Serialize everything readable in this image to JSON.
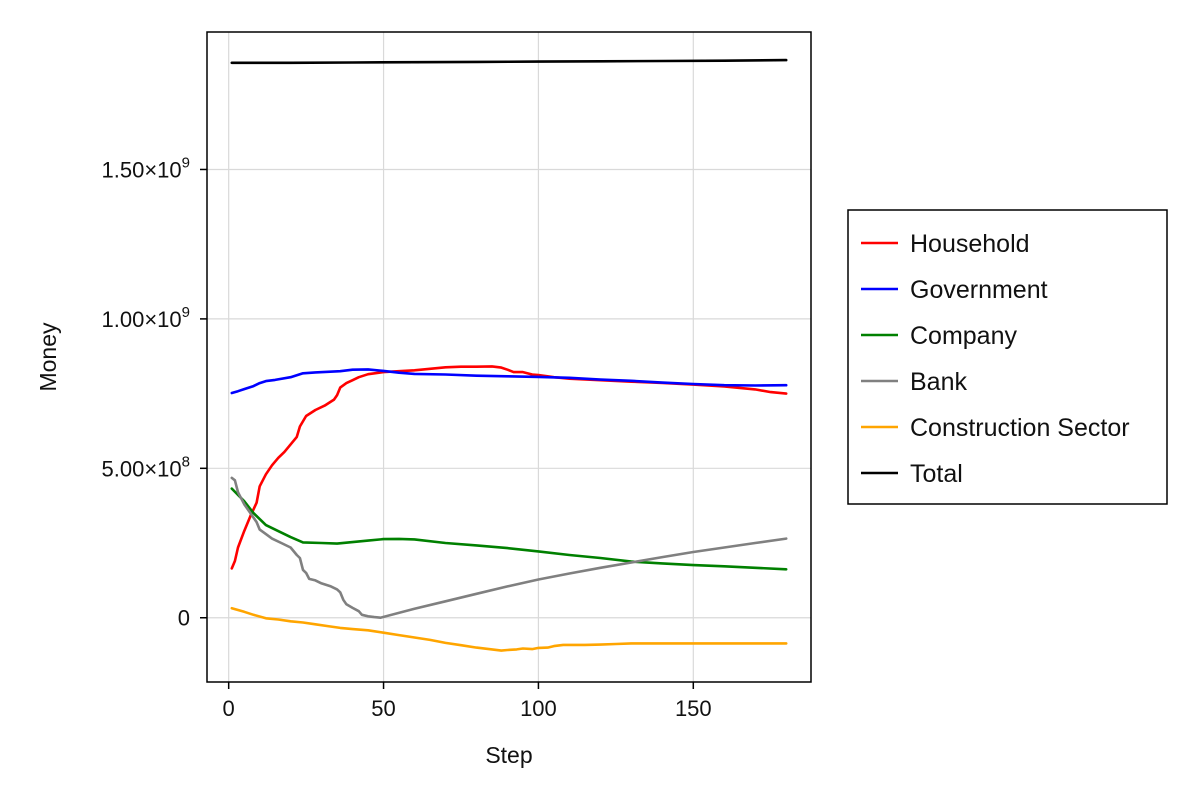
{
  "chart_data": {
    "type": "line",
    "xlabel": "Step",
    "ylabel": "Money",
    "xlim": [
      -7,
      188
    ],
    "ylim": [
      -215000000,
      1960000000
    ],
    "x_ticks": [
      {
        "value": 0,
        "label": "0"
      },
      {
        "value": 50,
        "label": "50"
      },
      {
        "value": 100,
        "label": "100"
      },
      {
        "value": 150,
        "label": "150"
      }
    ],
    "y_ticks": [
      {
        "value": 0,
        "mantissa": "0",
        "exponent": ""
      },
      {
        "value": 500000000,
        "mantissa": "5.00×10",
        "exponent": "8"
      },
      {
        "value": 1000000000,
        "mantissa": "1.00×10",
        "exponent": "9"
      },
      {
        "value": 1500000000,
        "mantissa": "1.50×10",
        "exponent": "9"
      }
    ],
    "grid": true,
    "legend_position": "right",
    "series": [
      {
        "name": "Household",
        "color": "#ff0000",
        "points": [
          [
            1,
            165000000
          ],
          [
            2,
            190000000
          ],
          [
            3,
            235000000
          ],
          [
            5,
            290000000
          ],
          [
            7,
            340000000
          ],
          [
            9,
            385000000
          ],
          [
            10,
            440000000
          ],
          [
            12,
            480000000
          ],
          [
            14,
            510000000
          ],
          [
            16,
            535000000
          ],
          [
            18,
            555000000
          ],
          [
            20,
            580000000
          ],
          [
            22,
            605000000
          ],
          [
            23,
            640000000
          ],
          [
            25,
            675000000
          ],
          [
            28,
            695000000
          ],
          [
            31,
            710000000
          ],
          [
            34,
            730000000
          ],
          [
            35,
            745000000
          ],
          [
            36,
            770000000
          ],
          [
            38,
            785000000
          ],
          [
            40,
            795000000
          ],
          [
            42,
            805000000
          ],
          [
            45,
            815000000
          ],
          [
            50,
            822000000
          ],
          [
            55,
            825000000
          ],
          [
            60,
            828000000
          ],
          [
            65,
            833000000
          ],
          [
            70,
            838000000
          ],
          [
            75,
            840000000
          ],
          [
            80,
            840000000
          ],
          [
            85,
            841000000
          ],
          [
            88,
            837000000
          ],
          [
            90,
            830000000
          ],
          [
            92,
            822000000
          ],
          [
            95,
            822000000
          ],
          [
            98,
            814000000
          ],
          [
            100,
            812000000
          ],
          [
            105,
            805000000
          ],
          [
            110,
            800000000
          ],
          [
            120,
            795000000
          ],
          [
            130,
            790000000
          ],
          [
            140,
            786000000
          ],
          [
            150,
            780000000
          ],
          [
            160,
            774000000
          ],
          [
            170,
            764000000
          ],
          [
            175,
            755000000
          ],
          [
            180,
            750000000
          ]
        ]
      },
      {
        "name": "Government",
        "color": "#0000ff",
        "points": [
          [
            1,
            752000000
          ],
          [
            3,
            758000000
          ],
          [
            5,
            765000000
          ],
          [
            8,
            775000000
          ],
          [
            10,
            785000000
          ],
          [
            12,
            792000000
          ],
          [
            15,
            796000000
          ],
          [
            20,
            805000000
          ],
          [
            24,
            818000000
          ],
          [
            28,
            821000000
          ],
          [
            32,
            823000000
          ],
          [
            36,
            825000000
          ],
          [
            40,
            830000000
          ],
          [
            45,
            831000000
          ],
          [
            50,
            826000000
          ],
          [
            55,
            820000000
          ],
          [
            60,
            816000000
          ],
          [
            70,
            814000000
          ],
          [
            80,
            810000000
          ],
          [
            90,
            808000000
          ],
          [
            100,
            806000000
          ],
          [
            110,
            803000000
          ],
          [
            120,
            797000000
          ],
          [
            130,
            793000000
          ],
          [
            140,
            787000000
          ],
          [
            150,
            782000000
          ],
          [
            160,
            778000000
          ],
          [
            170,
            777000000
          ],
          [
            180,
            778000000
          ]
        ]
      },
      {
        "name": "Company",
        "color": "#008000",
        "points": [
          [
            1,
            432000000
          ],
          [
            5,
            390000000
          ],
          [
            8,
            350000000
          ],
          [
            12,
            310000000
          ],
          [
            16,
            290000000
          ],
          [
            20,
            270000000
          ],
          [
            24,
            252000000
          ],
          [
            30,
            250000000
          ],
          [
            35,
            248000000
          ],
          [
            40,
            253000000
          ],
          [
            45,
            258000000
          ],
          [
            50,
            263000000
          ],
          [
            55,
            264000000
          ],
          [
            60,
            262000000
          ],
          [
            70,
            250000000
          ],
          [
            80,
            242000000
          ],
          [
            90,
            233000000
          ],
          [
            100,
            222000000
          ],
          [
            110,
            210000000
          ],
          [
            120,
            200000000
          ],
          [
            130,
            188000000
          ],
          [
            140,
            182000000
          ],
          [
            150,
            176000000
          ],
          [
            160,
            172000000
          ],
          [
            170,
            167000000
          ],
          [
            180,
            162000000
          ]
        ]
      },
      {
        "name": "Bank",
        "color": "#808080",
        "points": [
          [
            1,
            468000000
          ],
          [
            2,
            460000000
          ],
          [
            3,
            420000000
          ],
          [
            5,
            380000000
          ],
          [
            7,
            350000000
          ],
          [
            9,
            320000000
          ],
          [
            10,
            295000000
          ],
          [
            12,
            280000000
          ],
          [
            14,
            265000000
          ],
          [
            17,
            250000000
          ],
          [
            20,
            235000000
          ],
          [
            22,
            210000000
          ],
          [
            23,
            200000000
          ],
          [
            24,
            160000000
          ],
          [
            25,
            150000000
          ],
          [
            26,
            130000000
          ],
          [
            28,
            125000000
          ],
          [
            30,
            115000000
          ],
          [
            33,
            105000000
          ],
          [
            35,
            95000000
          ],
          [
            36,
            85000000
          ],
          [
            37,
            60000000
          ],
          [
            38,
            45000000
          ],
          [
            40,
            33000000
          ],
          [
            42,
            22000000
          ],
          [
            43,
            10000000
          ],
          [
            45,
            5000000
          ],
          [
            47,
            2000000
          ],
          [
            49,
            0
          ],
          [
            60,
            30000000
          ],
          [
            70,
            55000000
          ],
          [
            80,
            80000000
          ],
          [
            90,
            105000000
          ],
          [
            100,
            128000000
          ],
          [
            110,
            148000000
          ],
          [
            120,
            167000000
          ],
          [
            130,
            185000000
          ],
          [
            140,
            203000000
          ],
          [
            150,
            220000000
          ],
          [
            160,
            235000000
          ],
          [
            170,
            250000000
          ],
          [
            180,
            265000000
          ]
        ]
      },
      {
        "name": "Construction Sector",
        "color": "#ffa500",
        "points": [
          [
            1,
            32000000
          ],
          [
            5,
            20000000
          ],
          [
            8,
            10000000
          ],
          [
            12,
            -2000000
          ],
          [
            16,
            -6000000
          ],
          [
            20,
            -12000000
          ],
          [
            24,
            -16000000
          ],
          [
            28,
            -22000000
          ],
          [
            32,
            -28000000
          ],
          [
            36,
            -34000000
          ],
          [
            40,
            -38000000
          ],
          [
            45,
            -42000000
          ],
          [
            50,
            -50000000
          ],
          [
            55,
            -58000000
          ],
          [
            60,
            -66000000
          ],
          [
            65,
            -74000000
          ],
          [
            70,
            -84000000
          ],
          [
            75,
            -92000000
          ],
          [
            80,
            -100000000
          ],
          [
            85,
            -106000000
          ],
          [
            88,
            -110000000
          ],
          [
            90,
            -108000000
          ],
          [
            93,
            -106000000
          ],
          [
            95,
            -103000000
          ],
          [
            98,
            -105000000
          ],
          [
            100,
            -101000000
          ],
          [
            103,
            -100000000
          ],
          [
            105,
            -95000000
          ],
          [
            108,
            -91000000
          ],
          [
            115,
            -91000000
          ],
          [
            120,
            -90000000
          ],
          [
            125,
            -88000000
          ],
          [
            130,
            -86000000
          ],
          [
            140,
            -86000000
          ],
          [
            150,
            -86000000
          ],
          [
            160,
            -86000000
          ],
          [
            170,
            -86000000
          ],
          [
            180,
            -86000000
          ]
        ]
      },
      {
        "name": "Total",
        "color": "#000000",
        "points": [
          [
            1,
            1857000000
          ],
          [
            20,
            1857000000
          ],
          [
            40,
            1858000000
          ],
          [
            60,
            1859000000
          ],
          [
            80,
            1860000000
          ],
          [
            100,
            1861000000
          ],
          [
            120,
            1862000000
          ],
          [
            140,
            1863000000
          ],
          [
            160,
            1864000000
          ],
          [
            180,
            1866000000
          ]
        ]
      }
    ]
  }
}
